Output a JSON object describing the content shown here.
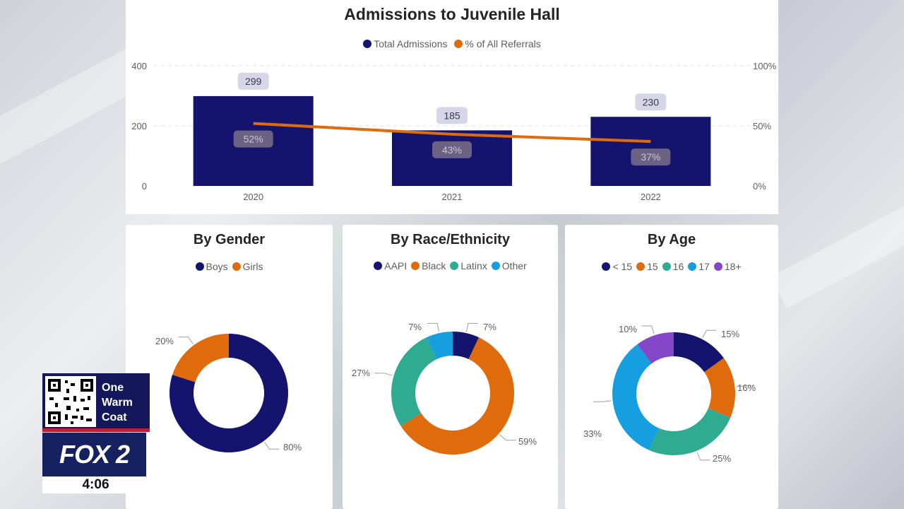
{
  "colors": {
    "navy": "#14146e",
    "orange": "#e06b0c",
    "teal": "#2fab92",
    "sky": "#159fe0",
    "purple": "#8547c9"
  },
  "chart_data": [
    {
      "type": "bar",
      "title": "Admissions to Juvenile Hall",
      "categories": [
        "2020",
        "2021",
        "2022"
      ],
      "series": [
        {
          "name": "Total Admissions",
          "kind": "bar",
          "values": [
            299,
            185,
            230
          ],
          "labels": [
            "299",
            "185",
            "230"
          ]
        },
        {
          "name": "% of All Referrals",
          "kind": "line",
          "values": [
            52,
            43,
            37
          ],
          "labels": [
            "52%",
            "43%",
            "37%"
          ]
        }
      ],
      "y_ticks": [
        "400",
        "200",
        "0"
      ],
      "y2_ticks": [
        "100%",
        "50%",
        "0%"
      ],
      "ylim": [
        0,
        400
      ],
      "y2lim": [
        0,
        100
      ],
      "legend_position": "top-center"
    },
    {
      "type": "pie",
      "title": "By Gender",
      "labels": [
        "Boys",
        "Girls"
      ],
      "values": [
        80,
        20
      ],
      "value_labels": [
        "80%",
        "20%"
      ],
      "colors": [
        "#14146e",
        "#e06b0c"
      ]
    },
    {
      "type": "pie",
      "title": "By Race/Ethnicity",
      "labels": [
        "AAPI",
        "Black",
        "Latinx",
        "Other"
      ],
      "values": [
        7,
        59,
        27,
        7
      ],
      "value_labels": [
        "7%",
        "59%",
        "27%",
        "7%"
      ],
      "colors": [
        "#14146e",
        "#e06b0c",
        "#2fab92",
        "#159fe0"
      ]
    },
    {
      "type": "pie",
      "title": "By Age",
      "labels": [
        "< 15",
        "15",
        "16",
        "17",
        "18+"
      ],
      "values": [
        15,
        16,
        25,
        33,
        10
      ],
      "value_labels": [
        "15%",
        "16%",
        "25%",
        "33%",
        "10%"
      ],
      "colors": [
        "#14146e",
        "#e06b0c",
        "#2fab92",
        "#159fe0",
        "#8547c9"
      ]
    }
  ],
  "overlay": {
    "promo_line1": "One",
    "promo_line2": "Warm",
    "promo_line3": "Coat",
    "station_logo": "FOX 2",
    "clock": "4:06"
  }
}
